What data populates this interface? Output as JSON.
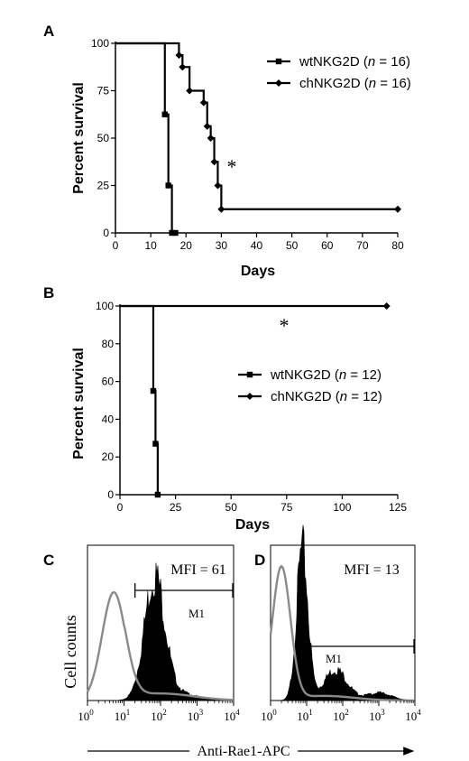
{
  "chart_data": [
    {
      "panel": "A",
      "type": "line",
      "xlabel": "Days",
      "ylabel": "Percent survival",
      "xlim": [
        0,
        80
      ],
      "ylim": [
        0,
        100
      ],
      "xticks": [
        0,
        10,
        20,
        30,
        40,
        50,
        60,
        70,
        80
      ],
      "yticks": [
        0,
        25,
        50,
        75,
        100
      ],
      "legend_position": "top-right",
      "annotation": "*",
      "series": [
        {
          "name": "wtNKG2D (n = 16)",
          "label_main": "wtNKG2D (",
          "label_n": "n",
          "label_rest": " = 16)",
          "marker": "square",
          "x": [
            0,
            14,
            15,
            16,
            17
          ],
          "y": [
            100,
            62.5,
            25,
            0,
            0
          ]
        },
        {
          "name": "chNKG2D (n = 16)",
          "label_main": "chNKG2D (",
          "label_n": "n",
          "label_rest": " = 16)",
          "marker": "diamond",
          "x": [
            0,
            18,
            19,
            21,
            25,
            26,
            27,
            28,
            29,
            30,
            80
          ],
          "y": [
            100,
            93.75,
            87.5,
            75,
            68.75,
            56.25,
            50,
            37.5,
            25,
            12.5,
            12.5
          ]
        }
      ]
    },
    {
      "panel": "B",
      "type": "line",
      "xlabel": "Days",
      "ylabel": "Percent survival",
      "xlim": [
        0,
        125
      ],
      "ylim": [
        0,
        100
      ],
      "xticks": [
        0,
        25,
        50,
        75,
        100,
        125
      ],
      "yticks": [
        0,
        20,
        40,
        60,
        80,
        100
      ],
      "legend_position": "right",
      "annotation": "*",
      "series": [
        {
          "name": "wtNKG2D (n = 12)",
          "label_main": "wtNKG2D (",
          "label_n": "n",
          "label_rest": " = 12)",
          "marker": "square",
          "x": [
            0,
            15,
            16,
            17
          ],
          "y": [
            100,
            55,
            27,
            0
          ]
        },
        {
          "name": "chNKG2D (n = 12)",
          "label_main": "chNKG2D (",
          "label_n": "n",
          "label_rest": " = 12)",
          "marker": "diamond",
          "x": [
            0,
            120
          ],
          "y": [
            100,
            100
          ]
        }
      ]
    },
    {
      "panel": "C",
      "type": "area",
      "xscale": "log",
      "xlim": [
        1,
        10000
      ],
      "ylabel": "Cell counts",
      "mfi_label": "MFI = 61",
      "gate_label": "M1",
      "gate_range": [
        20,
        10000
      ],
      "tick_base": "10",
      "tick_exponents": [
        "0",
        "1",
        "2",
        "3",
        "4"
      ],
      "stained_peak": 70,
      "control_peak": 5
    },
    {
      "panel": "D",
      "type": "area",
      "xscale": "log",
      "xlim": [
        1,
        10000
      ],
      "mfi_label": "MFI = 13",
      "gate_label": "M1",
      "gate_range": [
        10,
        10000
      ],
      "tick_base": "10",
      "tick_exponents": [
        "0",
        "1",
        "2",
        "3",
        "4"
      ],
      "stained_peak": 8,
      "control_peak": 2.5
    }
  ],
  "shared_xlabel": "Anti-Rae1-APC"
}
